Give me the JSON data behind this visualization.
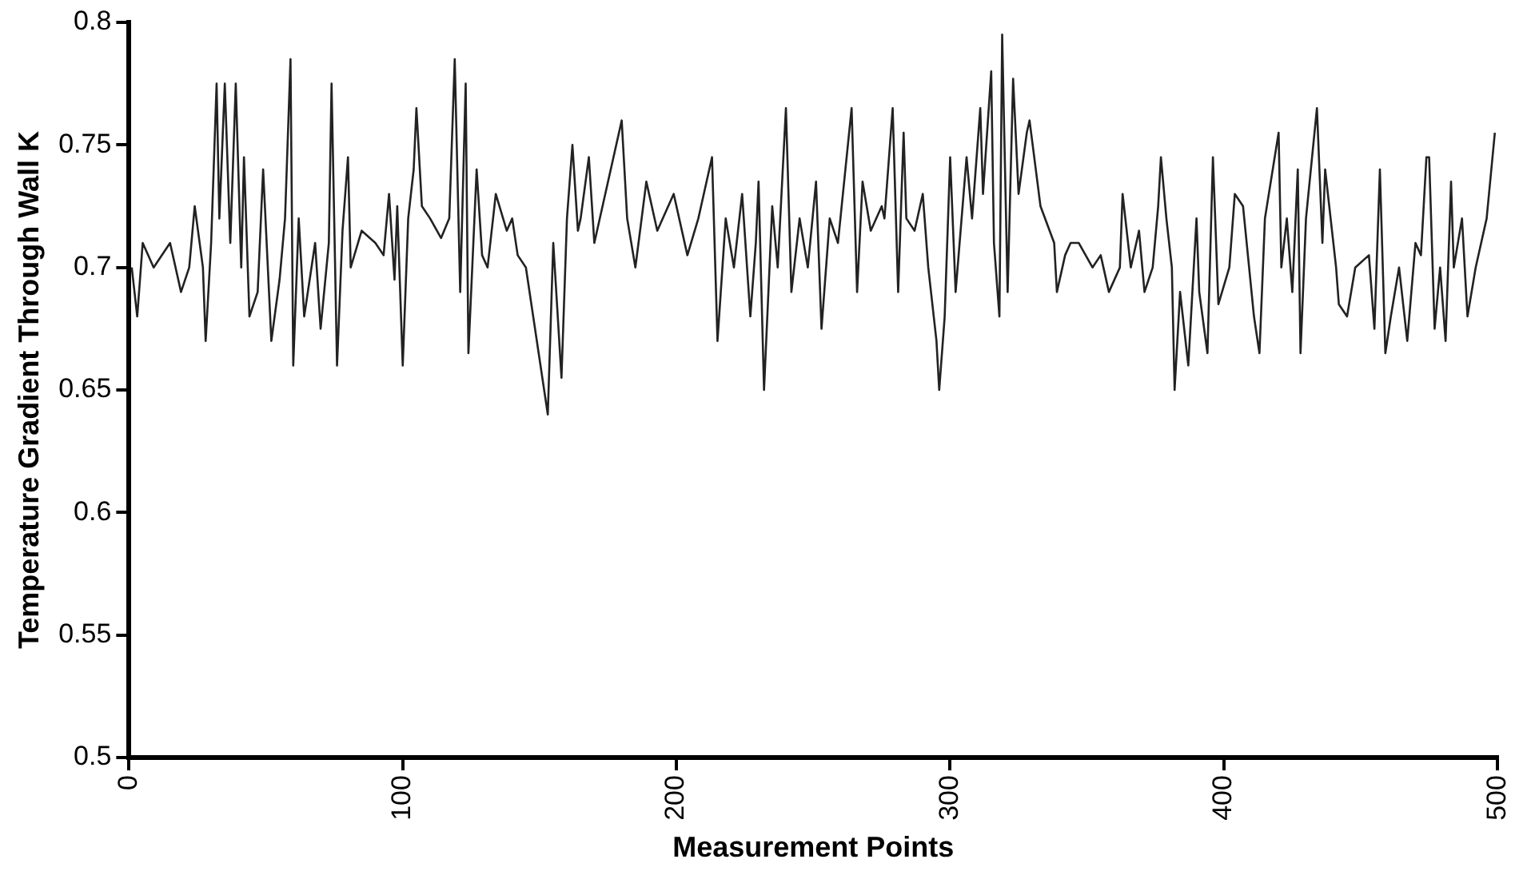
{
  "chart_data": {
    "type": "line",
    "xlabel": "Measurement Points",
    "ylabel": "Temperature Gradient Through Wall K",
    "xlim": [
      0,
      500
    ],
    "xticks": [
      0,
      100,
      200,
      300,
      400,
      500
    ],
    "ylim": [
      0.5,
      0.8
    ],
    "yticks": [
      0.5,
      0.55,
      0.6,
      0.65,
      0.7,
      0.75,
      0.8
    ],
    "grid": false,
    "legend": false,
    "marker": "none",
    "line_style": "solid",
    "series": [
      {
        "color": "#222222",
        "x": [
          1,
          3,
          5,
          9,
          15,
          19,
          22,
          24,
          27,
          28,
          30,
          32,
          33,
          35,
          37,
          39,
          41,
          42,
          44,
          47,
          49,
          52,
          55,
          57,
          59,
          60,
          62,
          64,
          68,
          70,
          73,
          74,
          76,
          78,
          80,
          81,
          85,
          90,
          93,
          95,
          97,
          98,
          100,
          102,
          104,
          105,
          107,
          110,
          114,
          117,
          119,
          121,
          123,
          124,
          127,
          129,
          131,
          134,
          138,
          140,
          142,
          145,
          153,
          155,
          158,
          160,
          162,
          164,
          165,
          168,
          170,
          180,
          182,
          185,
          189,
          193,
          199,
          204,
          208,
          213,
          215,
          218,
          221,
          224,
          227,
          229,
          230,
          232,
          235,
          237,
          240,
          242,
          245,
          248,
          251,
          253,
          256,
          259,
          264,
          266,
          268,
          271,
          275,
          276,
          279,
          281,
          283,
          284,
          287,
          290,
          292,
          295,
          296,
          298,
          300,
          302,
          306,
          308,
          311,
          312,
          315,
          316,
          318,
          319,
          321,
          323,
          325,
          328,
          329,
          333,
          338,
          339,
          342,
          344,
          347,
          352,
          355,
          358,
          362,
          363,
          366,
          369,
          371,
          374,
          376,
          377,
          379,
          381,
          382,
          384,
          387,
          390,
          391,
          394,
          396,
          398,
          402,
          404,
          407,
          411,
          413,
          415,
          420,
          421,
          423,
          425,
          427,
          428,
          430,
          434,
          436,
          437,
          441,
          442,
          445,
          448,
          453,
          455,
          457,
          459,
          461,
          464,
          467,
          470,
          472,
          474,
          475,
          477,
          479,
          481,
          483,
          484,
          487,
          489,
          492,
          496,
          499
        ],
        "values": [
          0.7,
          0.68,
          0.71,
          0.7,
          0.71,
          0.69,
          0.7,
          0.725,
          0.7,
          0.67,
          0.71,
          0.775,
          0.72,
          0.775,
          0.71,
          0.775,
          0.7,
          0.745,
          0.68,
          0.69,
          0.74,
          0.67,
          0.695,
          0.72,
          0.785,
          0.66,
          0.72,
          0.68,
          0.71,
          0.675,
          0.71,
          0.775,
          0.66,
          0.715,
          0.745,
          0.7,
          0.715,
          0.71,
          0.705,
          0.73,
          0.695,
          0.725,
          0.66,
          0.72,
          0.74,
          0.765,
          0.725,
          0.72,
          0.712,
          0.72,
          0.785,
          0.69,
          0.775,
          0.665,
          0.74,
          0.705,
          0.7,
          0.73,
          0.715,
          0.72,
          0.705,
          0.7,
          0.64,
          0.71,
          0.655,
          0.72,
          0.75,
          0.715,
          0.72,
          0.745,
          0.71,
          0.76,
          0.72,
          0.7,
          0.735,
          0.715,
          0.73,
          0.705,
          0.72,
          0.745,
          0.67,
          0.72,
          0.7,
          0.73,
          0.68,
          0.71,
          0.735,
          0.65,
          0.725,
          0.7,
          0.765,
          0.69,
          0.72,
          0.7,
          0.735,
          0.675,
          0.72,
          0.71,
          0.765,
          0.69,
          0.735,
          0.715,
          0.725,
          0.72,
          0.765,
          0.69,
          0.755,
          0.72,
          0.715,
          0.73,
          0.7,
          0.67,
          0.65,
          0.68,
          0.745,
          0.69,
          0.745,
          0.72,
          0.765,
          0.73,
          0.78,
          0.71,
          0.68,
          0.795,
          0.69,
          0.777,
          0.73,
          0.755,
          0.76,
          0.725,
          0.71,
          0.69,
          0.705,
          0.71,
          0.71,
          0.7,
          0.705,
          0.69,
          0.7,
          0.73,
          0.7,
          0.715,
          0.69,
          0.7,
          0.725,
          0.745,
          0.72,
          0.7,
          0.65,
          0.69,
          0.66,
          0.72,
          0.69,
          0.665,
          0.745,
          0.685,
          0.7,
          0.73,
          0.725,
          0.68,
          0.665,
          0.72,
          0.755,
          0.7,
          0.72,
          0.69,
          0.74,
          0.665,
          0.72,
          0.765,
          0.71,
          0.74,
          0.7,
          0.685,
          0.68,
          0.7,
          0.705,
          0.675,
          0.74,
          0.665,
          0.68,
          0.7,
          0.67,
          0.71,
          0.705,
          0.745,
          0.745,
          0.675,
          0.7,
          0.67,
          0.735,
          0.7,
          0.72,
          0.68,
          0.7,
          0.72,
          0.755
        ]
      }
    ]
  }
}
